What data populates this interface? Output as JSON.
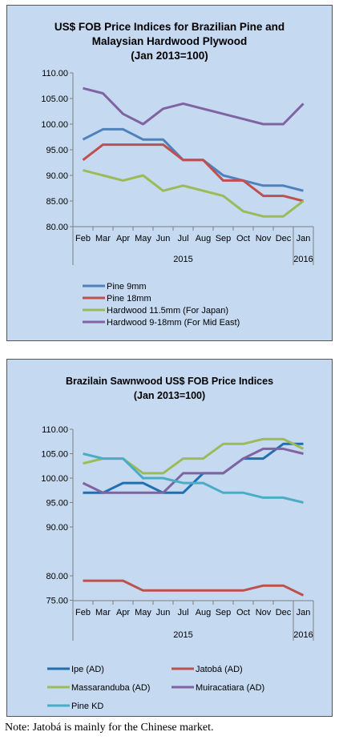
{
  "chart_data": [
    {
      "type": "line",
      "title_lines": [
        "US$ FOB Price Indices for Brazilian Pine and",
        "Malaysian Hardwood Plywood",
        "(Jan 2013=100)"
      ],
      "categories": [
        "Feb",
        "Mar",
        "Apr",
        "May",
        "Jun",
        "Jul",
        "Aug",
        "Sep",
        "Oct",
        "Nov",
        "Dec",
        "Jan"
      ],
      "group_labels": [
        "2015",
        "2016"
      ],
      "y_ticks": [
        "110.00",
        "105.00",
        "100.00",
        "95.00",
        "90.00",
        "85.00",
        "80.00"
      ],
      "ylim": [
        80,
        110
      ],
      "grid": false,
      "legend_position": "bottom",
      "series": [
        {
          "name": "Pine 9mm",
          "color": "#4f81bd",
          "values": [
            97,
            99,
            99,
            97,
            97,
            93,
            93,
            90,
            89,
            88,
            88,
            87
          ]
        },
        {
          "name": "Pine 18mm",
          "color": "#c0504d",
          "values": [
            93,
            96,
            96,
            96,
            96,
            93,
            93,
            89,
            89,
            86,
            86,
            85
          ]
        },
        {
          "name": "Hardwood 11.5mm (For Japan)",
          "color": "#9bbb59",
          "values": [
            91,
            90,
            89,
            90,
            87,
            88,
            87,
            86,
            83,
            82,
            82,
            85
          ]
        },
        {
          "name": "Hardwood 9-18mm (For Mid East)",
          "color": "#8064a2",
          "values": [
            107,
            106,
            102,
            100,
            103,
            104,
            103,
            102,
            101,
            100,
            100,
            104
          ]
        }
      ]
    },
    {
      "type": "line",
      "title_lines": [
        "Brazilain Sawnwood US$ FOB Price Indices",
        "(Jan 2013=100)"
      ],
      "categories": [
        "Feb",
        "Mar",
        "Apr",
        "May",
        "Jun",
        "Jul",
        "Aug",
        "Sep",
        "Oct",
        "Nov",
        "Dec",
        "Jan"
      ],
      "group_labels": [
        "2015",
        "2016"
      ],
      "y_ticks": [
        "110.00",
        "105.00",
        "100.00",
        "95.00",
        "90.00",
        "80.00",
        "75.00"
      ],
      "y_tick_values": [
        110,
        105,
        100,
        95,
        90,
        80,
        75
      ],
      "axis_break": "between 90.00 and 80.00",
      "grid": false,
      "legend_position": "bottom",
      "series": [
        {
          "name": "Ipe (AD)",
          "color": "#1f6fb2",
          "values": [
            97,
            97,
            99,
            99,
            97,
            97,
            101,
            101,
            104,
            104,
            107,
            107
          ]
        },
        {
          "name": "Jatobá (AD)",
          "color": "#c0504d",
          "values": [
            79,
            79,
            79,
            77,
            77,
            77,
            77,
            77,
            77,
            78,
            78,
            76
          ]
        },
        {
          "name": "Massaranduba (AD)",
          "color": "#9bbb59",
          "values": [
            103,
            104,
            104,
            101,
            101,
            104,
            104,
            107,
            107,
            108,
            108,
            106
          ]
        },
        {
          "name": "Muiracatiara (AD)",
          "color": "#8064a2",
          "values": [
            99,
            97,
            97,
            97,
            97,
            101,
            101,
            101,
            104,
            106,
            106,
            105
          ]
        },
        {
          "name": "Pine KD",
          "color": "#4bacc6",
          "values": [
            105,
            104,
            104,
            100,
            100,
            99,
            99,
            97,
            97,
            96,
            96,
            95
          ]
        }
      ]
    }
  ],
  "note": "Note: Jatobá is mainly for the Chinese market."
}
